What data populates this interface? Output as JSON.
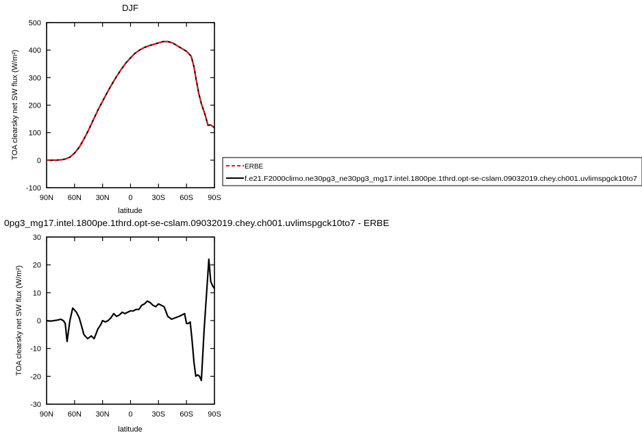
{
  "chart_data": [
    {
      "type": "line",
      "title": "DJF",
      "xlabel": "latitude",
      "ylabel": "TOA clearsky net SW flux (W/m²)",
      "xlim": [
        -90,
        90
      ],
      "ylim": [
        -100,
        500
      ],
      "xticks": [
        -90,
        -60,
        -30,
        0,
        30,
        60,
        90
      ],
      "xtick_labels": [
        "90N",
        "60N",
        "30N",
        "0",
        "30S",
        "60S",
        "90S"
      ],
      "yticks": [
        -100,
        0,
        100,
        200,
        300,
        400,
        500
      ],
      "ytick_labels": [
        "-100",
        "0",
        "100",
        "200",
        "300",
        "400",
        "500"
      ],
      "legend_position": "right",
      "series": [
        {
          "name": "ERBE",
          "color": "#e8141c",
          "dash": true,
          "x": [
            -90,
            -80,
            -75,
            -70,
            -65,
            -60,
            -55,
            -50,
            -45,
            -40,
            -35,
            -30,
            -25,
            -20,
            -15,
            -10,
            -5,
            0,
            5,
            10,
            15,
            20,
            25,
            30,
            35,
            40,
            45,
            50,
            55,
            60,
            65,
            68,
            70,
            73,
            76,
            80,
            83,
            86,
            90
          ],
          "y": [
            0,
            0,
            1,
            4,
            11,
            26,
            47,
            76,
            110,
            146,
            182,
            214,
            246,
            276,
            304,
            330,
            353,
            372,
            389,
            401,
            410,
            416,
            421,
            426,
            431,
            431,
            426,
            416,
            406,
            396,
            378,
            340,
            300,
            245,
            205,
            165,
            127,
            128,
            118
          ]
        },
        {
          "name": "f.e21.F2000climo.ne30pg3_ne30pg3_mg17.intel.1800pe.1thrd.opt-se-cslam.09032019.chey.ch001.uvlimspgck10to7",
          "color": "#000000",
          "dash": false,
          "x": [
            -90,
            -80,
            -75,
            -70,
            -65,
            -60,
            -55,
            -50,
            -45,
            -40,
            -35,
            -30,
            -25,
            -20,
            -15,
            -10,
            -5,
            0,
            5,
            10,
            15,
            20,
            25,
            30,
            35,
            40,
            45,
            50,
            55,
            60,
            65,
            68,
            70,
            73,
            76,
            80,
            83,
            86,
            90
          ],
          "y": [
            0,
            0,
            1,
            4,
            11,
            26,
            47,
            76,
            110,
            146,
            182,
            214,
            246,
            276,
            304,
            330,
            353,
            372,
            389,
            401,
            410,
            416,
            421,
            426,
            431,
            431,
            426,
            416,
            406,
            396,
            378,
            340,
            300,
            245,
            205,
            165,
            127,
            128,
            118
          ]
        }
      ]
    },
    {
      "type": "line",
      "title": "0pg3_mg17.intel.1800pe.1thrd.opt-se-cslam.09032019.chey.ch001.uvlimspgck10to7 - ERBE",
      "xlabel": "latitude",
      "ylabel": "TOA clearsky net SW flux (W/m²)",
      "xlim": [
        -90,
        90
      ],
      "ylim": [
        -30,
        30
      ],
      "xticks": [
        -90,
        -60,
        -30,
        0,
        30,
        60,
        90
      ],
      "xtick_labels": [
        "90N",
        "60N",
        "30N",
        "0",
        "30S",
        "60S",
        "90S"
      ],
      "yticks": [
        -30,
        -20,
        -10,
        0,
        10,
        20,
        30
      ],
      "ytick_labels": [
        "-30",
        "-20",
        "-10",
        "0",
        "10",
        "20",
        "30"
      ],
      "series": [
        {
          "color": "#000000",
          "x": [
            -90,
            -86,
            -82,
            -78,
            -75,
            -72,
            -70,
            -68,
            -65,
            -62,
            -58,
            -55,
            -52,
            -50,
            -46,
            -42,
            -39,
            -35,
            -32,
            -30,
            -27,
            -24,
            -21,
            -18,
            -15,
            -12,
            -9,
            -6,
            -3,
            0,
            3,
            6,
            9,
            12,
            15,
            18,
            21,
            24,
            27,
            30,
            33,
            36,
            40,
            44,
            48,
            52,
            55,
            58,
            60,
            62,
            64,
            66,
            68,
            70,
            72,
            74,
            76,
            79,
            82,
            84,
            86,
            88,
            90
          ],
          "y": [
            0,
            -0.2,
            0,
            0.2,
            0.5,
            0,
            -1,
            -7.5,
            0,
            4.5,
            3,
            1,
            -2.5,
            -5,
            -6.5,
            -5.5,
            -6.5,
            -3,
            -1.5,
            0,
            -0.5,
            0,
            1,
            2.5,
            1.5,
            2,
            3,
            2.5,
            3,
            3.5,
            3.5,
            4,
            4,
            5.5,
            6,
            7,
            6.5,
            5.5,
            5,
            6,
            5.5,
            5,
            1.5,
            0.5,
            1,
            1.5,
            2,
            2.5,
            -1,
            -1,
            -0.5,
            -7,
            -15,
            -20,
            -19.5,
            -20,
            -21.5,
            -3,
            12,
            22,
            14,
            12.5,
            11.5
          ]
        }
      ]
    }
  ]
}
